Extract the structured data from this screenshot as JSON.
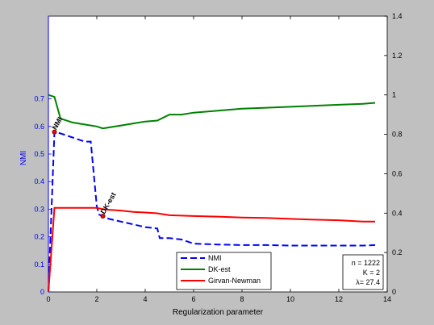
{
  "chart_data": {
    "type": "line",
    "xlabel": "Regularization parameter",
    "ylabel_left": "NMI",
    "xlim": [
      0,
      14
    ],
    "ylim_left": [
      0,
      1.0
    ],
    "ylim_right": [
      0,
      1.4
    ],
    "x_ticks": [
      "0",
      "2",
      "4",
      "6",
      "8",
      "10",
      "12",
      "14"
    ],
    "left_ticks": [
      "0",
      "0.1",
      "0.2",
      "0.3",
      "0.4",
      "0.5",
      "0.6",
      "0.7"
    ],
    "right_ticks": [
      "0",
      "0.2",
      "0.4",
      "0.6",
      "0.8",
      "1",
      "1.2",
      "1.4"
    ],
    "grid": false,
    "legend_position": "bottom-center",
    "series": [
      {
        "name": "NMI",
        "axis": "left",
        "color": "#0000ff",
        "dash": "dashed",
        "x": [
          0,
          0.25,
          0.5,
          1.0,
          1.5,
          1.75,
          2.0,
          2.1,
          2.25,
          2.5,
          3.0,
          3.5,
          4.0,
          4.5,
          4.6,
          5.0,
          5.5,
          6.0,
          7.0,
          8.0,
          9.0,
          10.0,
          11.0,
          12.0,
          13.0,
          13.5
        ],
        "y": [
          0.0,
          0.58,
          0.575,
          0.56,
          0.545,
          0.545,
          0.31,
          0.28,
          0.275,
          0.265,
          0.255,
          0.245,
          0.235,
          0.23,
          0.195,
          0.195,
          0.19,
          0.175,
          0.172,
          0.17,
          0.17,
          0.168,
          0.168,
          0.168,
          0.168,
          0.17
        ]
      },
      {
        "name": "DK-est",
        "axis": "right",
        "color": "#008000",
        "dash": "solid",
        "x": [
          0,
          0.25,
          0.5,
          1.0,
          1.5,
          2.0,
          2.25,
          2.5,
          3.0,
          3.5,
          4.0,
          4.5,
          5.0,
          5.5,
          6.0,
          6.5,
          7.0,
          8.0,
          9.0,
          10.0,
          11.0,
          12.0,
          13.0,
          13.5
        ],
        "y": [
          1.0,
          0.99,
          0.88,
          0.86,
          0.85,
          0.84,
          0.83,
          0.835,
          0.845,
          0.855,
          0.865,
          0.87,
          0.9,
          0.9,
          0.91,
          0.915,
          0.92,
          0.93,
          0.935,
          0.94,
          0.945,
          0.95,
          0.955,
          0.96
        ]
      },
      {
        "name": "Girvan-Newman",
        "axis": "left",
        "color": "#ff0000",
        "dash": "solid",
        "x": [
          0,
          0.25,
          0.5,
          1.0,
          1.5,
          2.0,
          2.25,
          2.5,
          3.0,
          3.5,
          4.0,
          4.5,
          5.0,
          6.0,
          7.0,
          8.0,
          9.0,
          10.0,
          11.0,
          12.0,
          13.0,
          13.5
        ],
        "y": [
          0.0,
          0.305,
          0.305,
          0.305,
          0.305,
          0.305,
          0.3,
          0.298,
          0.295,
          0.29,
          0.288,
          0.285,
          0.278,
          0.275,
          0.273,
          0.27,
          0.268,
          0.265,
          0.262,
          0.26,
          0.255,
          0.255
        ]
      }
    ],
    "annotations": [
      {
        "text": "NMI",
        "x": 0.25,
        "y": 0.58,
        "axis": "left",
        "rotate": -60
      },
      {
        "text": "DK-est",
        "x": 2.25,
        "y": 0.275,
        "axis": "left",
        "rotate": -60
      }
    ],
    "info_box": [
      "n = 1222",
      "K = 2",
      "λ= 27.4"
    ]
  }
}
